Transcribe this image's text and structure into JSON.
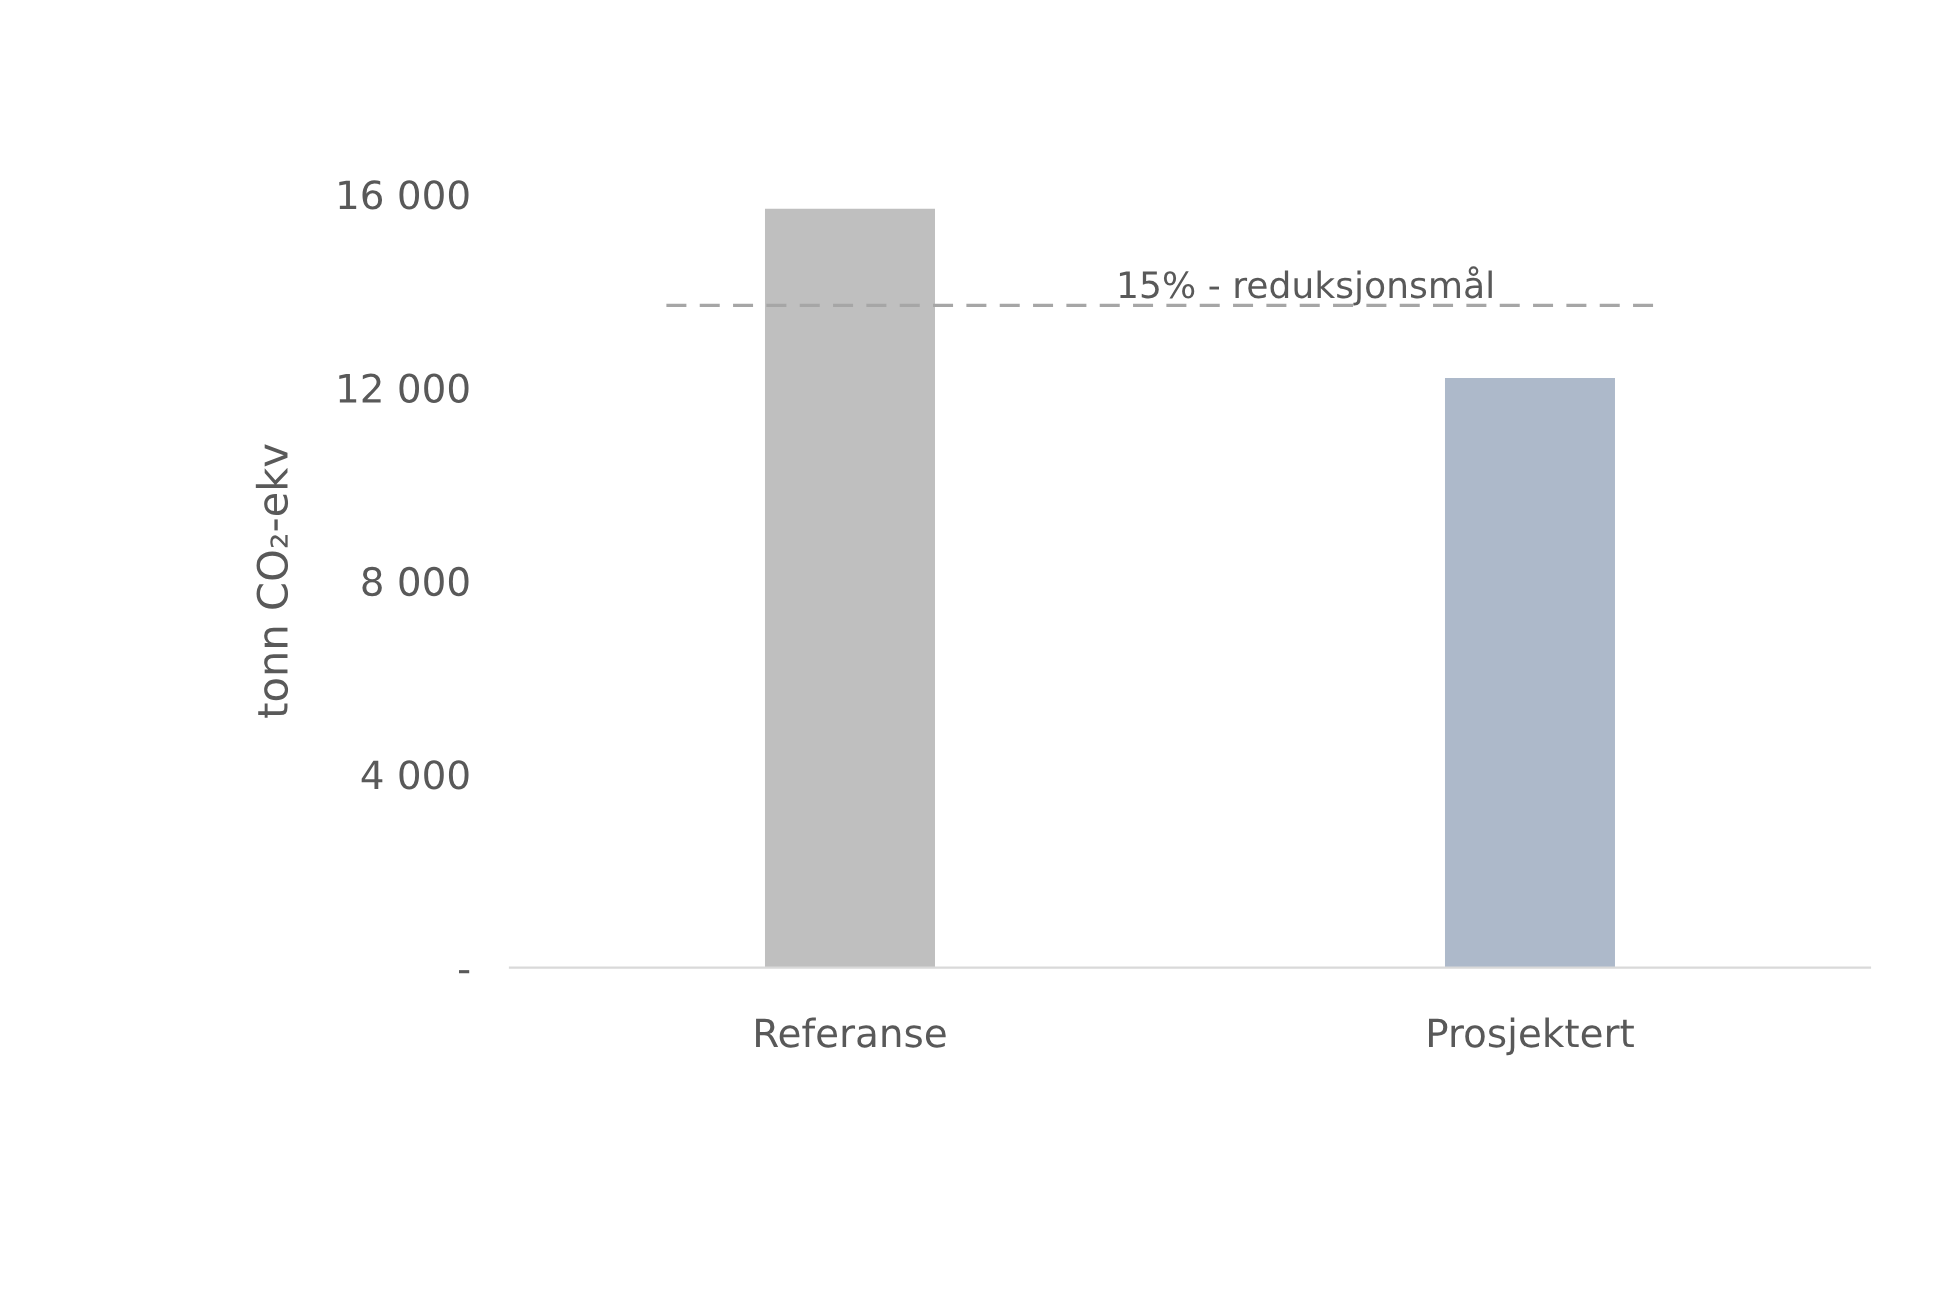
{
  "chart_data": {
    "type": "bar",
    "ylabel": "tonn CO₂-ekv",
    "categories": [
      "Referanse",
      "Prosjektert"
    ],
    "values": [
      15700,
      12200
    ],
    "colors": [
      "#bfbfbf",
      "#adb9ca"
    ],
    "ylim": [
      0,
      16000
    ],
    "yticks": [
      {
        "value": 0,
        "label": "-"
      },
      {
        "value": 4000,
        "label": "4 000"
      },
      {
        "value": 8000,
        "label": "8 000"
      },
      {
        "value": 12000,
        "label": "12 000"
      },
      {
        "value": 16000,
        "label": "16 000"
      }
    ],
    "ref_lines": [
      {
        "axis": "y",
        "value": 13700,
        "label": "15% - reduksjonsmål",
        "color": "#a6a6a6",
        "line_style": "dashed"
      }
    ],
    "grid": false,
    "legend": false
  }
}
